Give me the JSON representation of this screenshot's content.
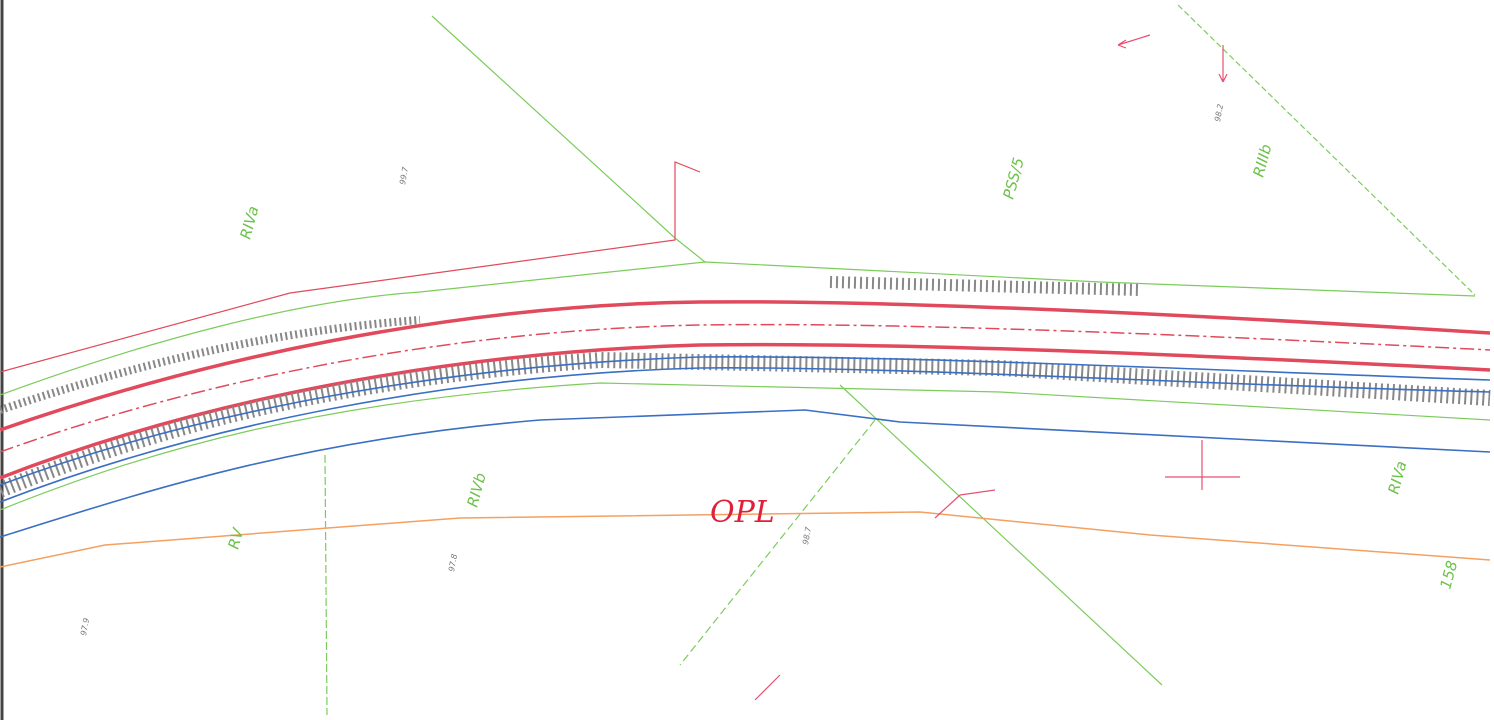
{
  "map": {
    "parcel_labels": [
      "RIVa",
      "PSS/5",
      "RIIIb",
      "RIVb",
      "RIVa",
      "RV",
      "158"
    ],
    "annotation": "OPL",
    "elevations": [
      "99.7",
      "97.8",
      "97.9",
      "98.7",
      "98.2"
    ]
  }
}
